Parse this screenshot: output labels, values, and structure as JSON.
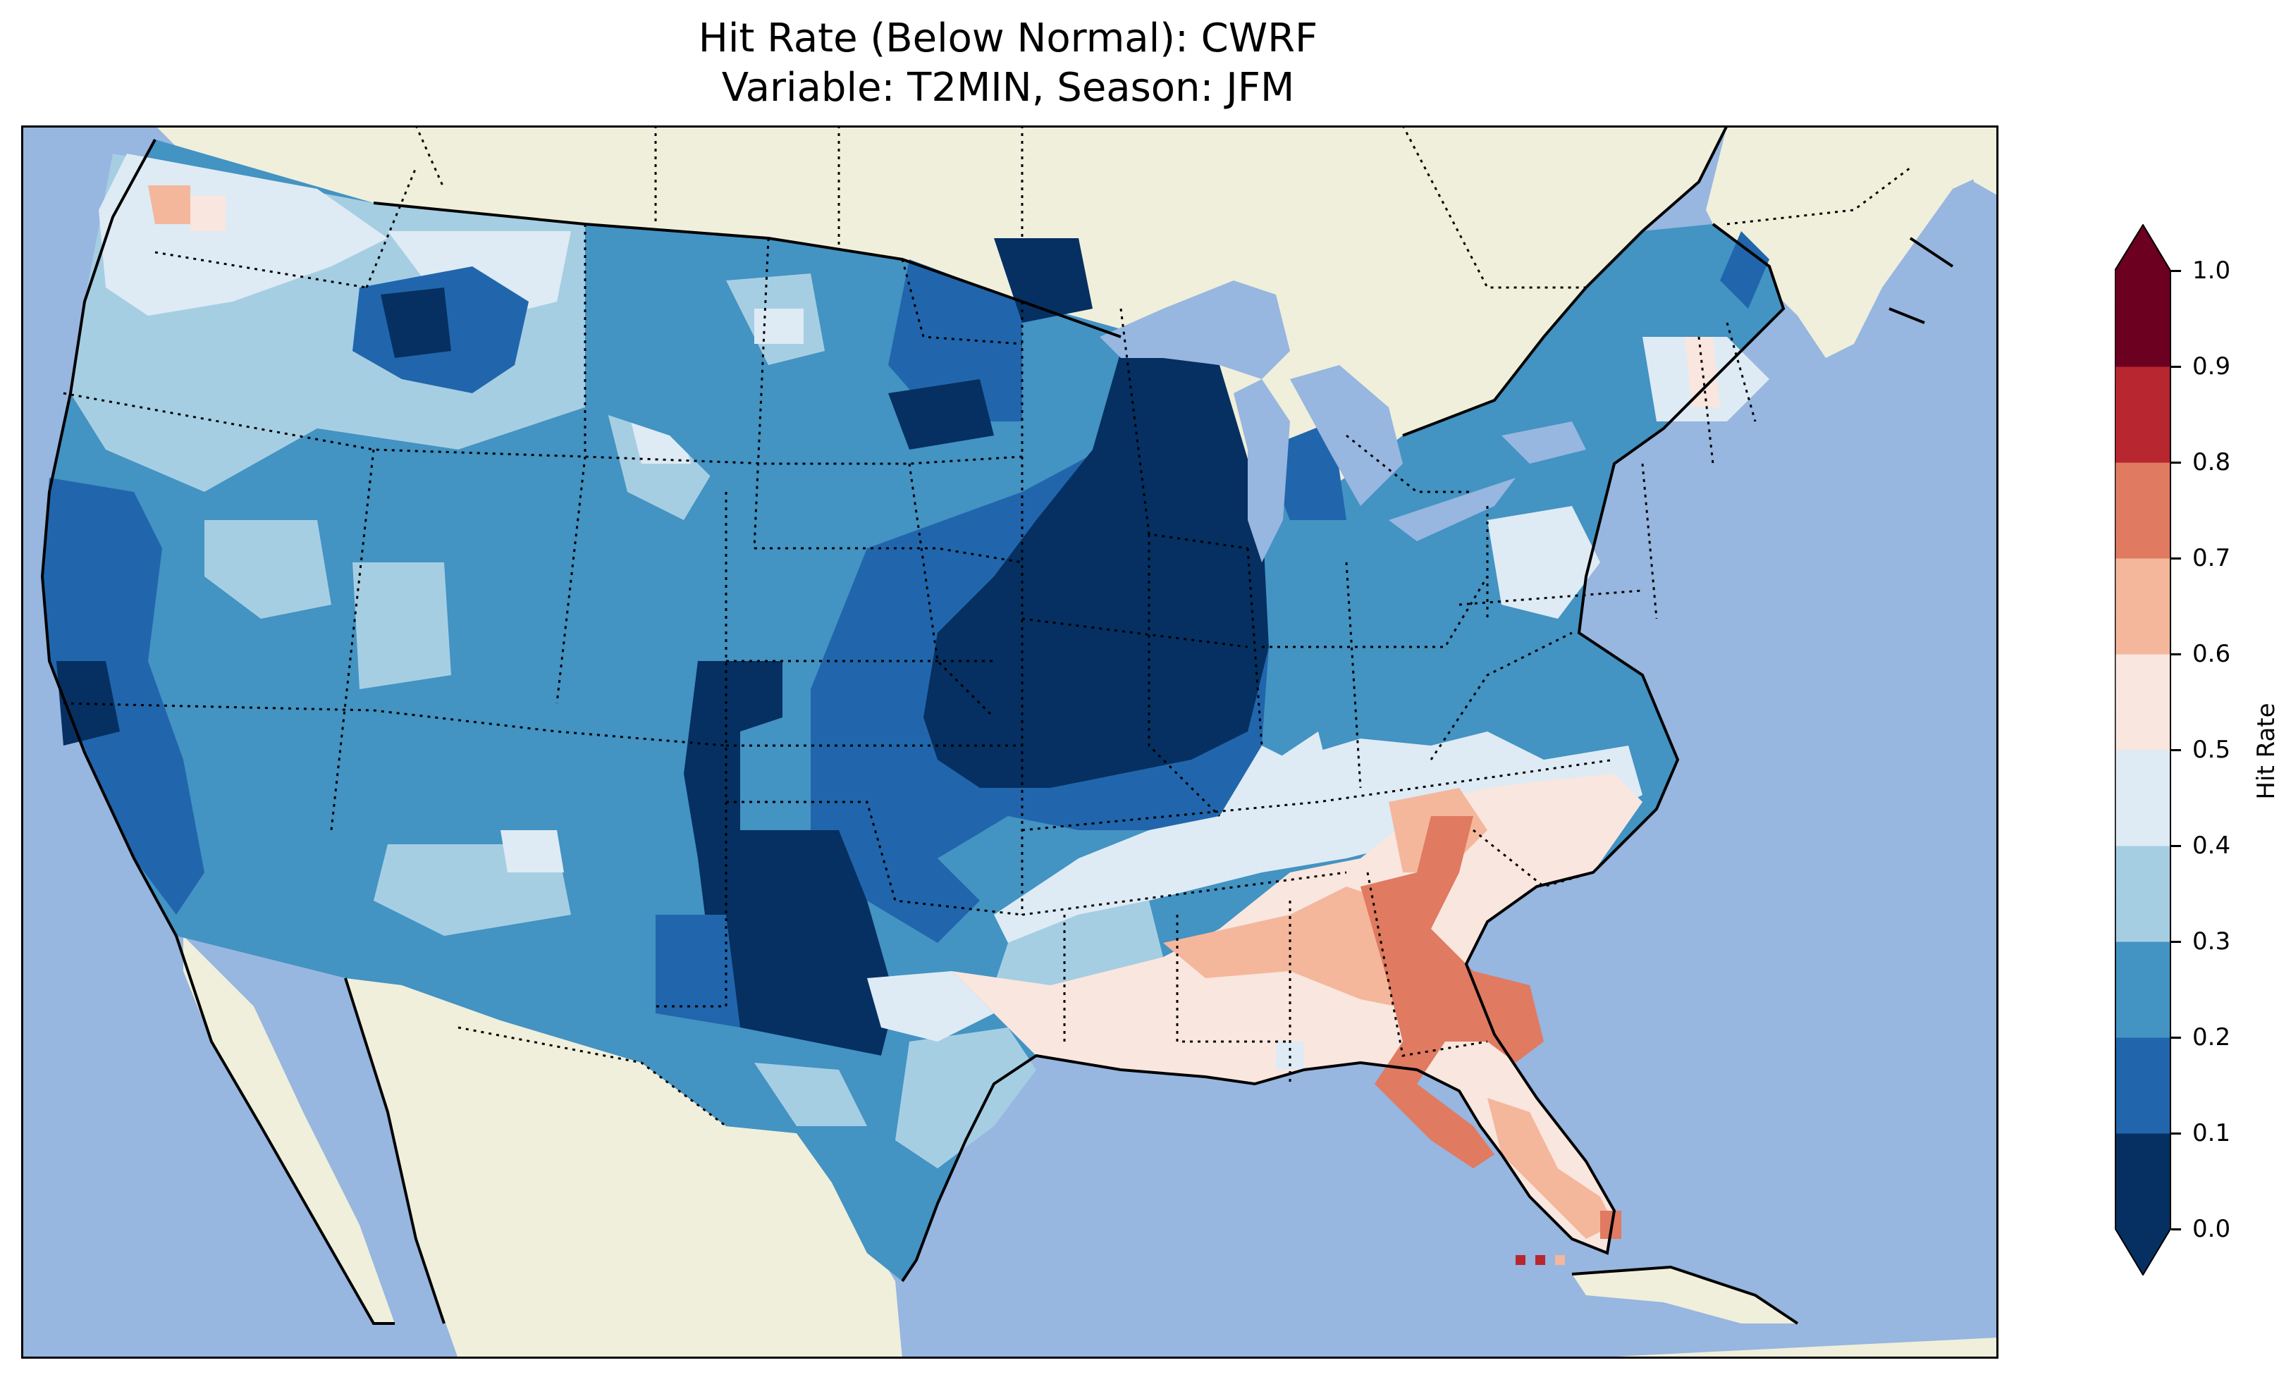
{
  "title": {
    "line1": "Hit Rate (Below Normal): CWRF",
    "line2": "Variable: T2MIN, Season: JFM"
  },
  "colors": {
    "ocean": "#97b6e0",
    "land": "#efefdb",
    "scale": [
      "#053061",
      "#2166ac",
      "#4393c3",
      "#92c5de",
      "#d1e5f0",
      "#f7f7f7",
      "#fddbc7",
      "#f4a582",
      "#d6604d",
      "#b2182b",
      "#67001f"
    ]
  },
  "colorbar": {
    "label": "Hit Rate",
    "ticks": [
      "0.0",
      "0.1",
      "0.2",
      "0.3",
      "0.4",
      "0.5",
      "0.6",
      "0.7",
      "0.8",
      "0.9",
      "1.0"
    ],
    "bins": [
      {
        "range": "0.0-0.1",
        "color": "#053061"
      },
      {
        "range": "0.1-0.2",
        "color": "#2166ac"
      },
      {
        "range": "0.2-0.3",
        "color": "#4393c3"
      },
      {
        "range": "0.3-0.4",
        "color": "#a6cee3"
      },
      {
        "range": "0.4-0.5",
        "color": "#deebf4"
      },
      {
        "range": "0.5-0.6",
        "color": "#f9e6de"
      },
      {
        "range": "0.6-0.7",
        "color": "#f4b79c"
      },
      {
        "range": "0.7-0.8",
        "color": "#e07a60"
      },
      {
        "range": "0.8-0.9",
        "color": "#b8262f"
      },
      {
        "range": "0.9-1.0",
        "color": "#6c0020"
      }
    ],
    "extend_low": "#053061",
    "extend_high": "#6c0020"
  }
}
